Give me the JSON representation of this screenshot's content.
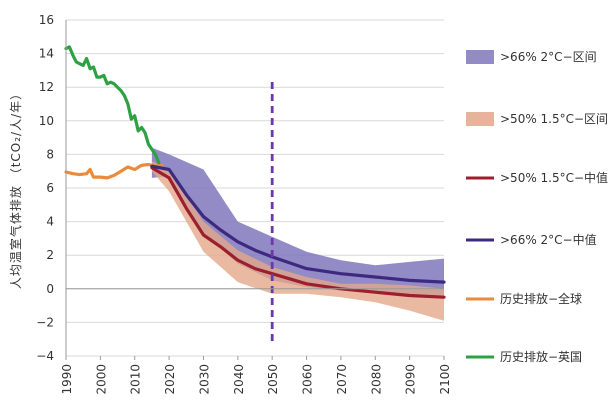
{
  "chart_data": {
    "type": "line",
    "title": "",
    "xlabel": "",
    "ylabel": "人均温室气体排放 （tCO₂/人/年）",
    "xlim": [
      1990,
      2100
    ],
    "ylim": [
      -4,
      16
    ],
    "x_ticks": [
      "1990",
      "2000",
      "2010",
      "2020",
      "2030",
      "2040",
      "2050",
      "2060",
      "2070",
      "2080",
      "2090",
      "2100"
    ],
    "y_ticks": [
      "16",
      "14",
      "12",
      "10",
      "8",
      "6",
      "4",
      "2",
      "0",
      "−2",
      "−4"
    ],
    "grid": "horizontal",
    "legend_position": "right",
    "vline_x": 2050,
    "series": [
      {
        "name": ">66% 2°C−区间",
        "kind": "band",
        "color": "#7f77bb",
        "x": [
          2015,
          2020,
          2030,
          2040,
          2050,
          2060,
          2070,
          2080,
          2090,
          2100
        ],
        "upper": [
          8.4,
          8.0,
          7.1,
          4.0,
          3.1,
          2.2,
          1.7,
          1.4,
          1.6,
          1.8
        ],
        "lower": [
          6.6,
          6.7,
          3.3,
          1.5,
          0.5,
          0.1,
          -0.1,
          -0.3,
          -0.4,
          -0.5
        ]
      },
      {
        "name": ">50% 1.5°C−区间",
        "kind": "band",
        "color": "#e3a78a",
        "x": [
          2015,
          2020,
          2030,
          2040,
          2050,
          2060,
          2070,
          2080,
          2090,
          2100
        ],
        "upper": [
          7.6,
          7.1,
          4.0,
          2.3,
          1.3,
          0.7,
          0.3,
          0.3,
          0.2,
          0.0
        ],
        "lower": [
          7.0,
          5.8,
          2.2,
          0.4,
          -0.3,
          -0.3,
          -0.5,
          -0.8,
          -1.3,
          -1.9
        ]
      },
      {
        "name": ">50% 1.5°C−中值",
        "kind": "line",
        "color": "#9c1f2e",
        "x": [
          2015,
          2020,
          2025,
          2030,
          2035,
          2040,
          2045,
          2050,
          2060,
          2070,
          2080,
          2090,
          2100
        ],
        "y": [
          7.2,
          6.6,
          4.8,
          3.2,
          2.5,
          1.7,
          1.2,
          0.9,
          0.3,
          0.0,
          -0.2,
          -0.4,
          -0.5
        ]
      },
      {
        "name": ">66% 2°C−中值",
        "kind": "line",
        "color": "#3d2a80",
        "x": [
          2015,
          2020,
          2025,
          2030,
          2035,
          2040,
          2045,
          2050,
          2060,
          2070,
          2080,
          2090,
          2100
        ],
        "y": [
          7.3,
          7.1,
          5.6,
          4.3,
          3.5,
          2.8,
          2.3,
          1.9,
          1.2,
          0.9,
          0.7,
          0.5,
          0.4
        ]
      },
      {
        "name": "历史排放−全球",
        "kind": "line",
        "color": "#ec8a3c",
        "x": [
          1990,
          1992,
          1994,
          1996,
          1997,
          1998,
          2000,
          2002,
          2004,
          2006,
          2008,
          2010,
          2012,
          2014,
          2016,
          2018
        ],
        "y": [
          6.95,
          6.85,
          6.8,
          6.85,
          7.1,
          6.65,
          6.65,
          6.6,
          6.75,
          7.0,
          7.25,
          7.1,
          7.35,
          7.4,
          7.3,
          7.35
        ]
      },
      {
        "name": "历史排放−英国",
        "kind": "line",
        "color": "#2ea143",
        "x": [
          1990,
          1991,
          1992,
          1993,
          1994,
          1995,
          1996,
          1997,
          1998,
          1999,
          2000,
          2001,
          2002,
          2003,
          2004,
          2005,
          2006,
          2007,
          2008,
          2009,
          2010,
          2011,
          2012,
          2013,
          2014,
          2015,
          2016,
          2017
        ],
        "y": [
          14.3,
          14.4,
          13.9,
          13.5,
          13.4,
          13.3,
          13.7,
          13.1,
          13.2,
          12.6,
          12.6,
          12.7,
          12.2,
          12.3,
          12.2,
          12.0,
          11.8,
          11.5,
          11.0,
          10.1,
          10.3,
          9.4,
          9.6,
          9.3,
          8.6,
          8.3,
          8.0,
          7.5
        ]
      }
    ]
  }
}
